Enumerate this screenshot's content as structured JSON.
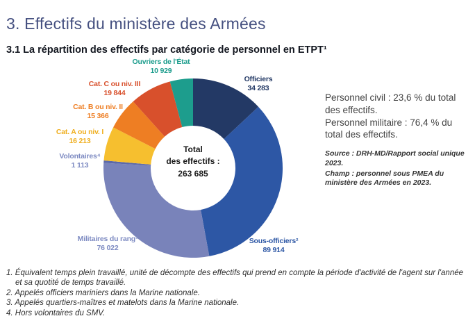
{
  "page": {
    "title": "3. Effectifs du ministère des Armées",
    "subtitle": "3.1 La répartition des effectifs par catégorie de personnel en ETPT¹"
  },
  "chart_data": {
    "type": "pie",
    "subtype": "donut",
    "title": "Répartition des effectifs par catégorie de personnel en ETPT",
    "start_angle": "top",
    "direction": "clockwise",
    "total_value": 263685,
    "center_label": {
      "line1": "Total",
      "line2": "des effectifs :",
      "line3": "263 685"
    },
    "segments": [
      {
        "label": "Officiers",
        "value": 34283,
        "value_display": "34 283",
        "color": "#233965",
        "label_color": "#233965"
      },
      {
        "label": "Sous-officiers²",
        "value": 89914,
        "value_display": "89 914",
        "color": "#2d57a5",
        "label_color": "#2d57a5"
      },
      {
        "label": "Militaires du rang³",
        "value": 76022,
        "value_display": "76 022",
        "color": "#7983ba",
        "label_color": "#7e8bc2"
      },
      {
        "label": "Volontaires⁴",
        "value": 1113,
        "value_display": "1 113",
        "color": "#5c69a9",
        "label_color": "#7e8bc2"
      },
      {
        "label": "Cat. A ou niv. I",
        "value": 16213,
        "value_display": "16 213",
        "color": "#f6bf2f",
        "label_color": "#efae1e"
      },
      {
        "label": "Cat. B ou niv. II",
        "value": 15366,
        "value_display": "15 366",
        "color": "#ee7e23",
        "label_color": "#ee7e23"
      },
      {
        "label": "Cat. C ou niv. III",
        "value": 19844,
        "value_display": "19 844",
        "color": "#d8502c",
        "label_color": "#d8502c"
      },
      {
        "label": "Ouvriers de l'État",
        "value": 10929,
        "value_display": "10 929",
        "color": "#1d9d8d",
        "label_color": "#1d9d8d"
      }
    ]
  },
  "side_panel": {
    "civil": "Personnel civil : 23,6 % du total des effectifs.",
    "military": "Personnel militaire : 76,4 % du total des effectifs.",
    "source": "Source : DRH-MD/Rapport social unique 2023.",
    "champ": "Champ : personnel sous PMEA du ministère des Armées en 2023."
  },
  "footnotes": [
    "1. Équivalent temps plein travaillé, unité de décompte des effectifs qui prend en compte la période d'activité de l'agent sur l'année et sa quotité de temps travaillé.",
    "2. Appelés officiers mariniers dans la Marine nationale.",
    "3. Appelés quartiers-maîtres et matelots dans la Marine nationale.",
    "4. Hors volontaires du SMV."
  ]
}
